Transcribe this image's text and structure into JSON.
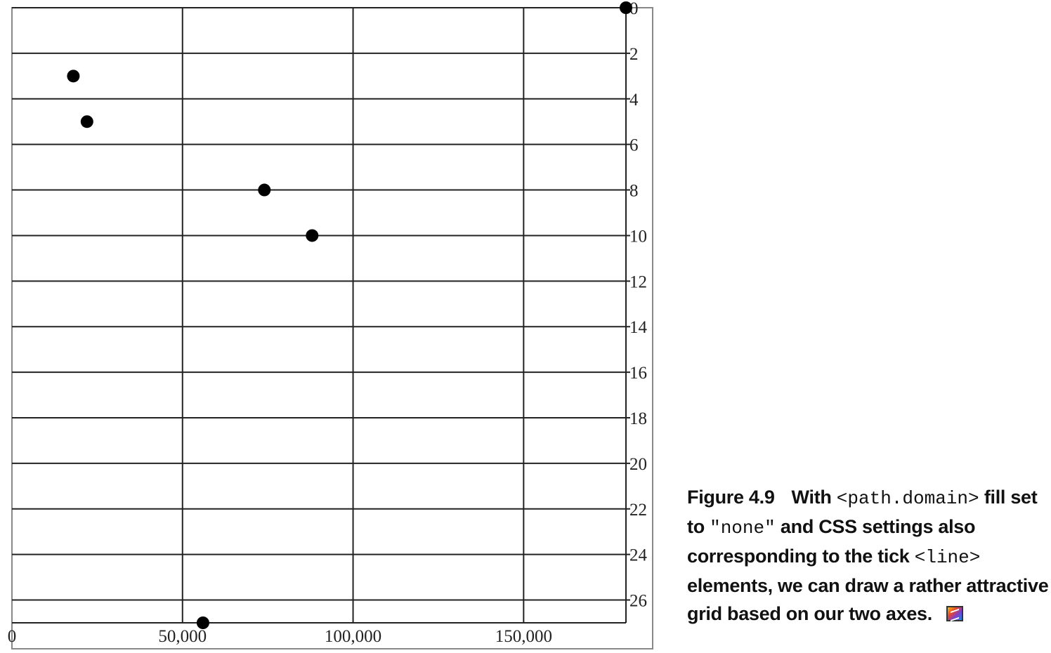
{
  "chart_data": {
    "type": "scatter",
    "title": "",
    "xlabel": "",
    "ylabel": "",
    "x_axis_position": "bottom",
    "y_axis_position": "right",
    "y_axis_inverted": true,
    "grid": true,
    "xlim": [
      0,
      180000
    ],
    "ylim": [
      0,
      27
    ],
    "x_ticks": [
      0,
      50000,
      100000,
      150000
    ],
    "x_tick_labels": [
      "0",
      "50,000",
      "100,000",
      "150,000"
    ],
    "y_ticks": [
      0,
      2,
      4,
      6,
      8,
      10,
      12,
      14,
      16,
      18,
      20,
      22,
      24,
      26
    ],
    "y_tick_labels": [
      "0",
      "2",
      "4",
      "6",
      "8",
      "10",
      "12",
      "14",
      "16",
      "18",
      "20",
      "22",
      "24",
      "26"
    ],
    "series": [
      {
        "points": [
          {
            "x": 18000,
            "y": 3
          },
          {
            "x": 22000,
            "y": 5
          },
          {
            "x": 74000,
            "y": 8
          },
          {
            "x": 88000,
            "y": 10
          },
          {
            "x": 56000,
            "y": 27
          },
          {
            "x": 180000,
            "y": 0
          }
        ]
      }
    ],
    "colors": {
      "points": "#000000",
      "grid": "#222222",
      "frame": "#888888"
    }
  },
  "caption": {
    "figure_number": "Figure 4.9",
    "text_1": "With ",
    "code_1": "<path.domain>",
    "text_2": " fill set to ",
    "code_2": "\"none\"",
    "text_3": " and CSS settings also corresponding to the tick ",
    "code_3": "<line>",
    "text_4": " elements, we can draw a rather attractive grid based on our two axes.",
    "icon": "color-plot-icon"
  }
}
